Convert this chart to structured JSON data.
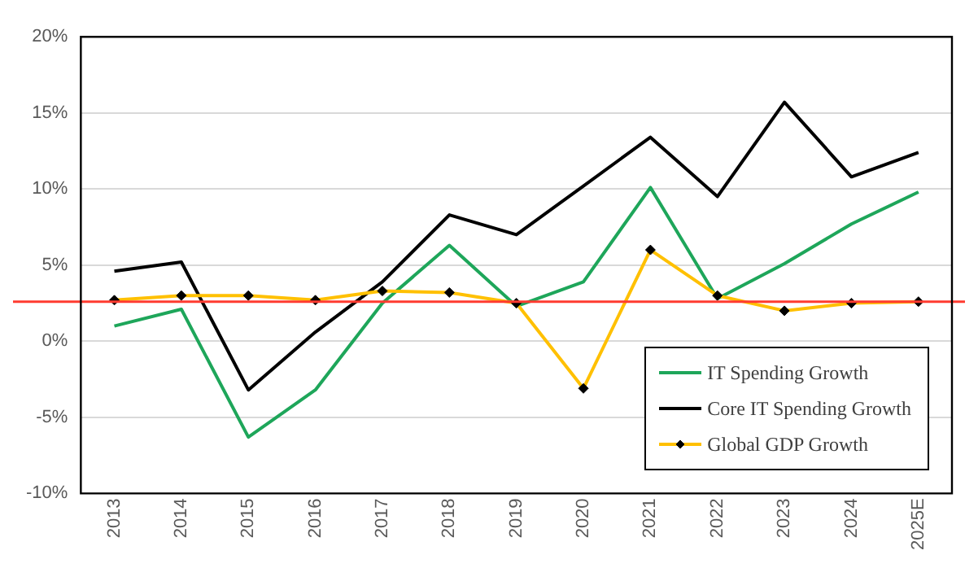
{
  "chart_data": {
    "type": "line",
    "categories": [
      "2013",
      "2014",
      "2015",
      "2016",
      "2017",
      "2018",
      "2019",
      "2020",
      "2021",
      "2022",
      "2023",
      "2024",
      "2025E"
    ],
    "series": [
      {
        "name": "IT Spending Growth",
        "color": "#1ea65a",
        "marker": "none",
        "values": [
          1.0,
          2.1,
          -6.3,
          -3.2,
          2.5,
          6.3,
          2.3,
          3.9,
          10.1,
          2.8,
          5.1,
          7.7,
          9.8
        ]
      },
      {
        "name": "Core IT Spending Growth",
        "color": "#000000",
        "marker": "none",
        "values": [
          4.6,
          5.2,
          -3.2,
          0.6,
          3.9,
          8.3,
          7.0,
          10.2,
          13.4,
          9.5,
          15.7,
          10.8,
          12.4
        ]
      },
      {
        "name": "Global GDP Growth",
        "color": "#ffc000",
        "marker": "diamond",
        "values": [
          2.7,
          3.0,
          3.0,
          2.7,
          3.3,
          3.2,
          2.5,
          -3.1,
          6.0,
          3.0,
          2.0,
          2.5,
          2.6
        ]
      }
    ],
    "ylim": [
      -10,
      20
    ],
    "yticks": [
      {
        "value": -10,
        "label": "-10%"
      },
      {
        "value": -5,
        "label": "-5%"
      },
      {
        "value": 0,
        "label": "0%"
      },
      {
        "value": 5,
        "label": "5%"
      },
      {
        "value": 10,
        "label": "10%"
      },
      {
        "value": 15,
        "label": "15%"
      },
      {
        "value": 20,
        "label": "20%"
      }
    ],
    "ref_lines": [
      {
        "axis": "y",
        "value": 2.6,
        "color": "#ff3b30"
      }
    ],
    "grid": "y",
    "legend": "bottom right"
  }
}
